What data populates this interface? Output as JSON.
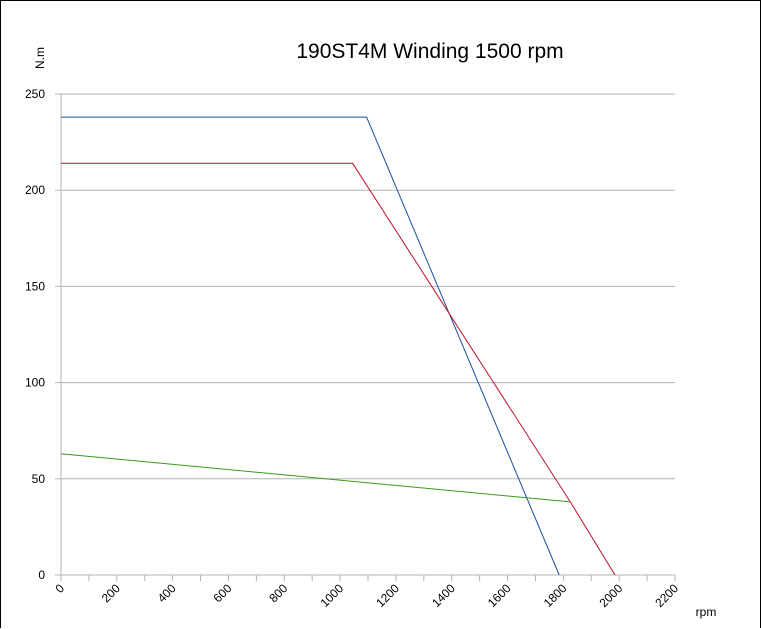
{
  "chart_data": {
    "type": "line",
    "title": "190ST4M Winding 1500 rpm",
    "ylabel": "N.m",
    "xlabel": "rpm",
    "xlim": [
      0,
      2200
    ],
    "ylim": [
      0,
      250
    ],
    "x_ticks": [
      "0",
      "200",
      "400",
      "600",
      "800",
      "1000",
      "1200",
      "1400",
      "1600",
      "1800",
      "2000",
      "2200"
    ],
    "y_ticks": [
      "0",
      "50",
      "100",
      "150",
      "200",
      "250"
    ],
    "grid": "horizontal",
    "series": [
      {
        "color": "#1f4e9c",
        "points": [
          [
            0,
            238
          ],
          [
            1095,
            238
          ],
          [
            1785,
            0
          ]
        ]
      },
      {
        "color": "#c0102b",
        "points": [
          [
            0,
            214
          ],
          [
            1045,
            214
          ],
          [
            1825,
            38
          ],
          [
            1985,
            0
          ]
        ]
      },
      {
        "color": "#3a9a1a",
        "points": [
          [
            0,
            63
          ],
          [
            1825,
            38
          ]
        ]
      }
    ]
  }
}
